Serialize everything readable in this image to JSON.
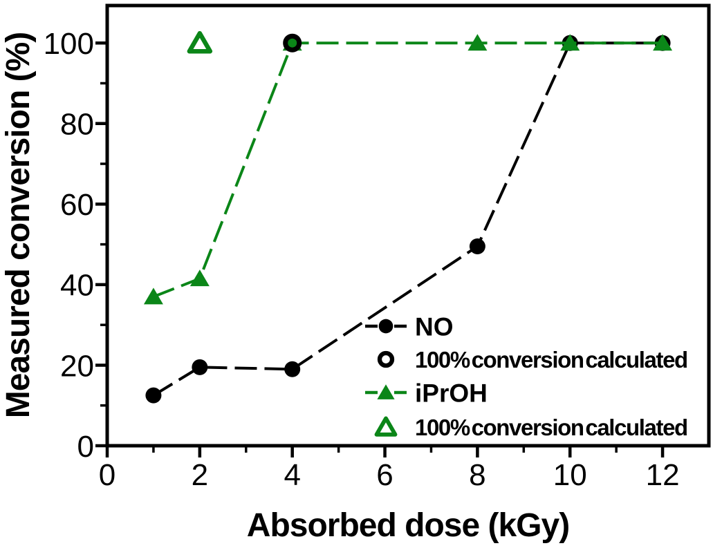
{
  "figure": {
    "background": "#ffffff"
  },
  "chart_data": {
    "type": "line",
    "title": "",
    "xlabel": "Absorbed dose (kGy)",
    "ylabel": "Measured conversion (%)",
    "xlim": [
      0,
      13
    ],
    "ylim": [
      0,
      109.3
    ],
    "grid": false,
    "legend_position": "inside-bottom-right",
    "x_major_ticks": [
      0,
      2,
      4,
      6,
      8,
      10,
      12
    ],
    "x_minor_ticks": [
      1,
      3,
      5,
      7,
      9,
      11
    ],
    "x_tick_labels": [
      "0",
      "2",
      "4",
      "6",
      "8",
      "10",
      "12"
    ],
    "y_major_ticks": [
      0,
      20,
      40,
      60,
      80,
      100
    ],
    "y_minor_ticks": [
      10,
      30,
      50,
      70,
      90
    ],
    "y_tick_labels": [
      "0",
      "20",
      "40",
      "60",
      "80",
      "100"
    ],
    "colors": {
      "no_series": "#000000",
      "iproh_series": "#0b8618"
    },
    "series": [
      {
        "name": "NO",
        "color": "#000000",
        "marker": "circle-filled",
        "line": "dashed",
        "points": [
          [
            1,
            12.5
          ],
          [
            2,
            19.5
          ],
          [
            4,
            19
          ],
          [
            8,
            49.5
          ],
          [
            10,
            100
          ],
          [
            12,
            100
          ]
        ]
      },
      {
        "name": "iPrOH",
        "color": "#0b8618",
        "marker": "triangle-filled",
        "line": "dashed",
        "points": [
          [
            1,
            37
          ],
          [
            2,
            41.5
          ],
          [
            4,
            100
          ],
          [
            8,
            100
          ],
          [
            10,
            100
          ],
          [
            12,
            100
          ]
        ]
      },
      {
        "name": "NO 100% conversion calculated",
        "color": "#000000",
        "marker": "circle-open",
        "line": "none",
        "points": [
          [
            4,
            100
          ]
        ]
      },
      {
        "name": "iPrOH 100% conversion calculated",
        "color": "#0b8618",
        "marker": "triangle-open",
        "line": "none",
        "points": [
          [
            2,
            100
          ]
        ]
      }
    ],
    "legend": [
      {
        "label": "NO",
        "color": "#000000",
        "marker": "circle-filled",
        "with_dashes": true
      },
      {
        "label": "100% conversion calculated",
        "color": "#000000",
        "marker": "circle-open",
        "with_dashes": false
      },
      {
        "label": "iPrOH",
        "color": "#0b8618",
        "marker": "triangle-filled",
        "with_dashes": true
      },
      {
        "label": "100% conversion calculated",
        "color": "#0b8618",
        "marker": "triangle-open",
        "with_dashes": false
      }
    ]
  }
}
